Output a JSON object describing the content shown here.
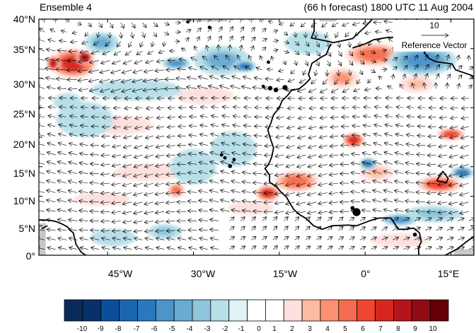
{
  "header": {
    "left_title": "Ensemble 4",
    "right_title": "(66 h forecast) 1800 UTC 11 Aug 2004"
  },
  "axes": {
    "y_ticks": [
      "40°N",
      "35°N",
      "30°N",
      "25°N",
      "20°N",
      "15°N",
      "10°N",
      "5°N",
      "0°"
    ],
    "x_ticks": [
      "45°W",
      "30°W",
      "15°W",
      "0°",
      "15°E"
    ]
  },
  "reference_vector": {
    "magnitude": "10",
    "label": "Reference Vector"
  },
  "colorbar": {
    "labels": [
      "-10",
      "-9",
      "-8",
      "-7",
      "-6",
      "-5",
      "-4",
      "-3",
      "-2",
      "-1",
      "0",
      "1",
      "2",
      "3",
      "4",
      "5",
      "6",
      "7",
      "8",
      "9",
      "10"
    ],
    "colors": [
      "#0a2a5a",
      "#08306b",
      "#0b4f9c",
      "#1c66b0",
      "#2b79bd",
      "#4d94c9",
      "#6aabd2",
      "#8ec4dc",
      "#b7dfe8",
      "#dff2f8",
      "#ffffff",
      "#ffffff",
      "#fde0dd",
      "#fcbba1",
      "#fc9272",
      "#f66c50",
      "#ef4533",
      "#d7261e",
      "#b5141b",
      "#8e0c12",
      "#650008"
    ]
  },
  "map": {
    "extent": {
      "lon_min": -57,
      "lon_max": 19,
      "lat_min": 0,
      "lat_max": 40
    },
    "anomaly_blobs": [
      {
        "lon": -51,
        "lat": 32.5,
        "rx": 4.2,
        "ry": 2.6,
        "value": 7
      },
      {
        "lon": -49,
        "lat": 33.5,
        "rx": 1.5,
        "ry": 1.2,
        "value": 9
      },
      {
        "lon": -54.5,
        "lat": 32.5,
        "rx": 1.2,
        "ry": 1.4,
        "value": 8
      },
      {
        "lon": 1.5,
        "lat": 34,
        "rx": 5,
        "ry": 2,
        "value": 5
      },
      {
        "lon": -4,
        "lat": 30,
        "rx": 3,
        "ry": 1.8,
        "value": 4
      },
      {
        "lon": -2,
        "lat": 19.5,
        "rx": 2,
        "ry": 1.3,
        "value": 7
      },
      {
        "lon": -12,
        "lat": 12.5,
        "rx": 4,
        "ry": 1.8,
        "value": 5
      },
      {
        "lon": -17,
        "lat": 10.5,
        "rx": 2.2,
        "ry": 1.4,
        "value": 7
      },
      {
        "lon": -33,
        "lat": 11,
        "rx": 1.5,
        "ry": 1.3,
        "value": 5
      },
      {
        "lon": 13,
        "lat": 12,
        "rx": 4,
        "ry": 1.5,
        "value": 6
      },
      {
        "lon": 15,
        "lat": 20.5,
        "rx": 2.5,
        "ry": 1.1,
        "value": 6
      },
      {
        "lon": 2,
        "lat": 14,
        "rx": 3,
        "ry": 1.5,
        "value": 3
      },
      {
        "lon": -38,
        "lat": 14,
        "rx": 6,
        "ry": 1.5,
        "value": 2
      },
      {
        "lon": -46,
        "lat": 9.5,
        "rx": 5,
        "ry": 1.2,
        "value": 2
      },
      {
        "lon": -28,
        "lat": 27,
        "rx": 5,
        "ry": 1.5,
        "value": 2
      },
      {
        "lon": -43,
        "lat": 22,
        "rx": 6,
        "ry": 1.6,
        "value": 2
      },
      {
        "lon": -20,
        "lat": 8,
        "rx": 4,
        "ry": 1.2,
        "value": 2
      },
      {
        "lon": 9,
        "lat": 29,
        "rx": 3,
        "ry": 1.5,
        "value": 3
      },
      {
        "lon": 6,
        "lat": 2.5,
        "rx": 5,
        "ry": 1.2,
        "value": 2
      },
      {
        "lon": -25,
        "lat": 33,
        "rx": 5,
        "ry": 2.5,
        "value": -4
      },
      {
        "lon": -21,
        "lat": 32,
        "rx": 2,
        "ry": 1,
        "value": -6
      },
      {
        "lon": -33,
        "lat": 32.5,
        "rx": 2.5,
        "ry": 1,
        "value": -5
      },
      {
        "lon": -40,
        "lat": 28,
        "rx": 8,
        "ry": 1.8,
        "value": -2
      },
      {
        "lon": -46,
        "lat": 36,
        "rx": 3,
        "ry": 1.8,
        "value": -4
      },
      {
        "lon": 10,
        "lat": 33,
        "rx": 6,
        "ry": 2.5,
        "value": -5
      },
      {
        "lon": 13,
        "lat": 36,
        "rx": 4,
        "ry": 1.5,
        "value": -6
      },
      {
        "lon": 0.5,
        "lat": 15.5,
        "rx": 1.5,
        "ry": 1,
        "value": -6
      },
      {
        "lon": 17,
        "lat": 14,
        "rx": 2,
        "ry": 1,
        "value": -6
      },
      {
        "lon": 6,
        "lat": 6,
        "rx": 3,
        "ry": 1,
        "value": -5
      },
      {
        "lon": -30,
        "lat": 15,
        "rx": 4,
        "ry": 3,
        "value": -2
      },
      {
        "lon": -23,
        "lat": 18,
        "rx": 4,
        "ry": 3,
        "value": -2
      },
      {
        "lon": -49,
        "lat": 23,
        "rx": 5,
        "ry": 3,
        "value": -2
      },
      {
        "lon": -44,
        "lat": 3,
        "rx": 4,
        "ry": 1.5,
        "value": -2
      },
      {
        "lon": -35,
        "lat": 4,
        "rx": 3,
        "ry": 1.3,
        "value": -3
      },
      {
        "lon": -10,
        "lat": 36,
        "rx": 4,
        "ry": 2,
        "value": -2
      },
      {
        "lon": -52,
        "lat": 26,
        "rx": 2.5,
        "ry": 1.5,
        "value": -2
      },
      {
        "lon": 12,
        "lat": 7,
        "rx": 5,
        "ry": 1.4,
        "value": -3
      }
    ],
    "coastlines": [
      [
        [
          -8.9,
          41
        ],
        [
          -8.9,
          38
        ],
        [
          -9.4,
          36.8
        ],
        [
          -6.3,
          36.2
        ],
        [
          -5.6,
          36
        ],
        [
          -2.2,
          36.7
        ],
        [
          0,
          38.7
        ],
        [
          2.2,
          41
        ]
      ],
      [
        [
          -5.9,
          35.8
        ],
        [
          -6.3,
          35.2
        ],
        [
          -6.8,
          34
        ],
        [
          -7.6,
          33.6
        ],
        [
          -9.3,
          32.5
        ],
        [
          -9.9,
          30.6
        ],
        [
          -9.6,
          29.9
        ],
        [
          -10.5,
          29
        ],
        [
          -11.5,
          28.2
        ],
        [
          -12.9,
          27.9
        ],
        [
          -13.6,
          27
        ],
        [
          -14.5,
          26.2
        ],
        [
          -15,
          25
        ],
        [
          -16,
          23.8
        ],
        [
          -16.5,
          22.3
        ],
        [
          -17,
          21.2
        ],
        [
          -16.5,
          19.6
        ],
        [
          -16,
          18.2
        ],
        [
          -16.3,
          16.7
        ],
        [
          -16.9,
          15.3
        ],
        [
          -17.5,
          14.7
        ],
        [
          -16.7,
          13.6
        ],
        [
          -16.7,
          12.4
        ],
        [
          -15.4,
          11.5
        ],
        [
          -14.7,
          10.7
        ],
        [
          -13.7,
          9.8
        ],
        [
          -13.2,
          8.9
        ],
        [
          -12.5,
          7.8
        ],
        [
          -11.5,
          6.9
        ],
        [
          -10.3,
          6.2
        ],
        [
          -9,
          5
        ],
        [
          -7.5,
          4.4
        ],
        [
          -5.8,
          5
        ],
        [
          -3,
          5.1
        ],
        [
          -1.5,
          5
        ],
        [
          1,
          5.9
        ],
        [
          2.5,
          6.3
        ],
        [
          4.5,
          6.3
        ],
        [
          5.8,
          4.4
        ],
        [
          7,
          4.4
        ],
        [
          8.5,
          4.6
        ],
        [
          9.5,
          3.8
        ],
        [
          9.8,
          2.3
        ],
        [
          9.3,
          1.2
        ],
        [
          9.4,
          0
        ]
      ],
      [
        [
          -2.2,
          35.1
        ],
        [
          0,
          35.8
        ],
        [
          1.5,
          36.5
        ],
        [
          4,
          36.9
        ],
        [
          7,
          37
        ],
        [
          9.8,
          37.3
        ],
        [
          11,
          37
        ],
        [
          10.2,
          36
        ],
        [
          11,
          35
        ],
        [
          10.3,
          34.3
        ],
        [
          11.2,
          33.3
        ],
        [
          12.3,
          32.8
        ],
        [
          15.2,
          32.4
        ],
        [
          15.8,
          31.4
        ],
        [
          18.5,
          30.5
        ],
        [
          19.1,
          30.2
        ]
      ],
      [
        [
          -57,
          6
        ],
        [
          -55,
          5.9
        ],
        [
          -54,
          5.7
        ],
        [
          -53,
          5.3
        ],
        [
          -52,
          4.8
        ],
        [
          -51.5,
          4.2
        ],
        [
          -51,
          3.8
        ],
        [
          -50.5,
          1.8
        ],
        [
          -50,
          1.1
        ],
        [
          -49.6,
          0.5
        ],
        [
          -48.8,
          0
        ]
      ],
      [
        [
          12.5,
          12.6
        ],
        [
          14.2,
          12.3
        ],
        [
          14.5,
          13
        ],
        [
          13.6,
          14.2
        ],
        [
          13,
          13.4
        ],
        [
          12.5,
          12.6
        ]
      ],
      [
        [
          -55.5,
          5
        ],
        [
          -56.5,
          4.5
        ]
      ],
      [
        [
          14,
          0
        ],
        [
          16,
          1
        ],
        [
          18,
          2.5
        ],
        [
          19,
          3.2
        ]
      ]
    ],
    "islands": [
      {
        "lon": -16.6,
        "lat": 28.3,
        "r": 0.4
      },
      {
        "lon": -15.6,
        "lat": 28,
        "r": 0.4
      },
      {
        "lon": -14,
        "lat": 28.4,
        "r": 0.45
      },
      {
        "lon": -17.8,
        "lat": 28.6,
        "r": 0.3
      },
      {
        "lon": -24.5,
        "lat": 16.5,
        "r": 0.3
      },
      {
        "lon": -23.6,
        "lat": 15.1,
        "r": 0.35
      },
      {
        "lon": -22.9,
        "lat": 16.2,
        "r": 0.3
      },
      {
        "lon": -25.1,
        "lat": 17,
        "r": 0.3
      },
      {
        "lon": -31,
        "lat": 39.5,
        "r": 0.25
      },
      {
        "lon": -27.2,
        "lat": 38.6,
        "r": 0.3
      },
      {
        "lon": -16.9,
        "lat": 32.7,
        "r": 0.3
      },
      {
        "lon": -1.5,
        "lat": 7.3,
        "r": 0.7
      },
      {
        "lon": -2.2,
        "lat": 8,
        "r": 0.35
      },
      {
        "lon": 8.7,
        "lat": 3.5,
        "r": 0.35
      }
    ]
  }
}
